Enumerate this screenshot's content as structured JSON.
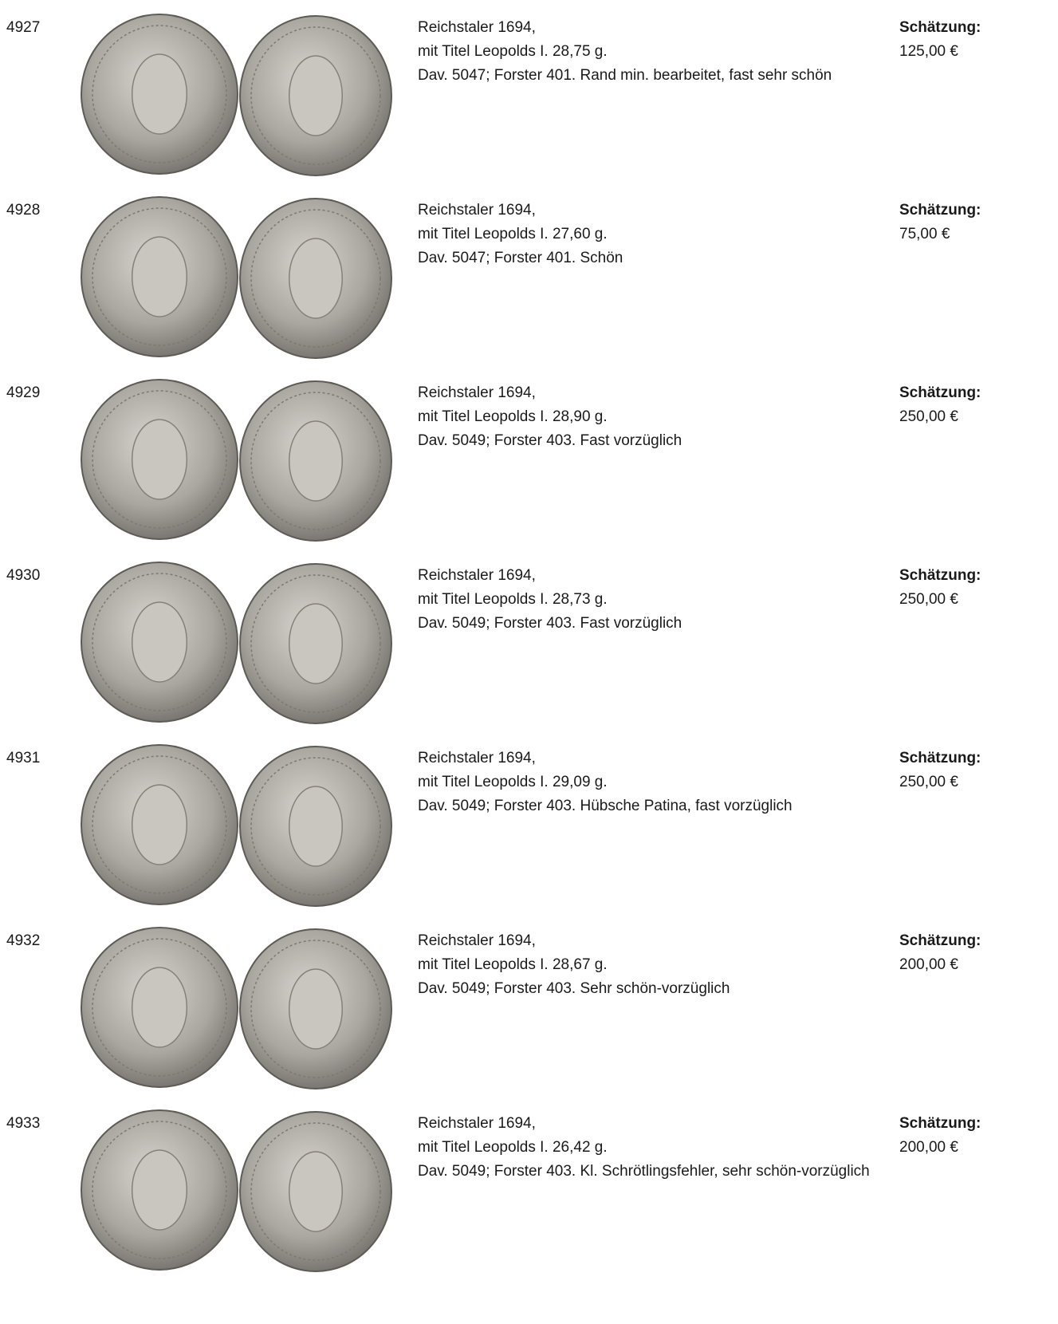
{
  "lots": [
    {
      "lot": "4927",
      "title": "Reichstaler 1694,",
      "line2": "mit Titel Leopolds I. 28,75 g.",
      "description": "Dav. 5047; Forster 401. Rand min. bearbeitet, fast sehr schön",
      "estimate_label": "Schätzung:",
      "estimate": "125,00 €"
    },
    {
      "lot": "4928",
      "title": "Reichstaler 1694,",
      "line2": "mit Titel Leopolds I. 27,60 g.",
      "description": "Dav. 5047; Forster 401. Schön",
      "estimate_label": "Schätzung:",
      "estimate": "75,00 €"
    },
    {
      "lot": "4929",
      "title": "Reichstaler 1694,",
      "line2": "mit Titel Leopolds I. 28,90 g.",
      "description": "Dav. 5049; Forster 403. Fast vorzüglich",
      "estimate_label": "Schätzung:",
      "estimate": "250,00 €"
    },
    {
      "lot": "4930",
      "title": "Reichstaler 1694,",
      "line2": "mit Titel Leopolds I. 28,73 g.",
      "description": "Dav. 5049; Forster 403. Fast vorzüglich",
      "estimate_label": "Schätzung:",
      "estimate": "250,00 €"
    },
    {
      "lot": "4931",
      "title": "Reichstaler 1694,",
      "line2": "mit Titel Leopolds I. 29,09 g.",
      "description": "Dav. 5049; Forster 403. Hübsche Patina, fast vorzüglich",
      "estimate_label": "Schätzung:",
      "estimate": "250,00 €"
    },
    {
      "lot": "4932",
      "title": "Reichstaler 1694,",
      "line2": "mit Titel Leopolds I. 28,67 g.",
      "description": "Dav. 5049; Forster 403. Sehr schön-vorzüglich",
      "estimate_label": "Schätzung:",
      "estimate": "200,00 €"
    },
    {
      "lot": "4933",
      "title": "Reichstaler 1694,",
      "line2": "mit Titel Leopolds I. 26,42 g.",
      "description": "Dav. 5049; Forster 403. Kl. Schrötlingsfehler, sehr schön-vorzüglich",
      "estimate_label": "Schätzung:",
      "estimate": "200,00 €"
    }
  ]
}
